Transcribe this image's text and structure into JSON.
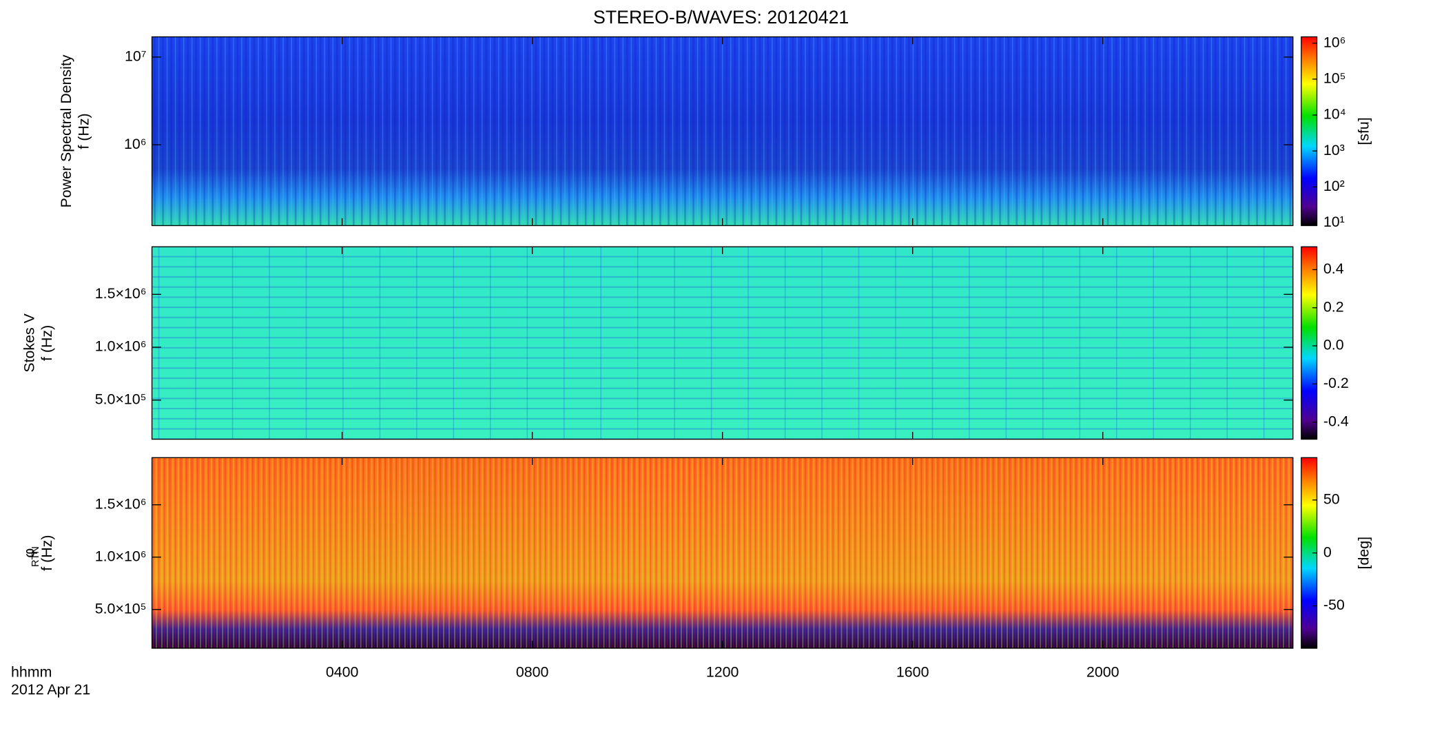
{
  "chart_data": {
    "type": "spectrogram",
    "title": "STEREO-B/WAVES: 20120421",
    "xlabel": "hhmm",
    "date": "2012 Apr 21",
    "xlim": [
      0,
      24
    ],
    "xticks": [
      {
        "value": 4,
        "label": "0400"
      },
      {
        "value": 8,
        "label": "0800"
      },
      {
        "value": 12,
        "label": "1200"
      },
      {
        "value": 16,
        "label": "1600"
      },
      {
        "value": 20,
        "label": "2000"
      }
    ],
    "panels": [
      {
        "ylabel": [
          "Power Spectral Density",
          "f (Hz)"
        ],
        "log": true,
        "ylim": [
          120000,
          17000000
        ],
        "yticks": [
          {
            "value": 1000000,
            "label": "10⁶"
          },
          {
            "value": 10000000,
            "label": "10⁷"
          }
        ],
        "colorbar": {
          "label": "[sfu]",
          "log": true,
          "lim": [
            8.4,
            1500000
          ],
          "ticks": [
            {
              "value": 10,
              "label": "10¹"
            },
            {
              "value": 100,
              "label": "10²"
            },
            {
              "value": 1000,
              "label": "10³"
            },
            {
              "value": 10000,
              "label": "10⁴"
            },
            {
              "value": 100000,
              "label": "10⁵"
            },
            {
              "value": 1000000,
              "label": "10⁶"
            }
          ]
        }
      },
      {
        "ylabel": [
          "Stokes V",
          "f (Hz)"
        ],
        "log": false,
        "ylim": [
          130000,
          1950000
        ],
        "yticks": [
          {
            "value": 500000,
            "label": "5.0×10⁵"
          },
          {
            "value": 1000000,
            "label": "1.0×10⁶"
          },
          {
            "value": 1500000,
            "label": "1.5×10⁶"
          }
        ],
        "colorbar": {
          "label": null,
          "log": false,
          "lim": [
            -0.49,
            0.52
          ],
          "ticks": [
            -0.4,
            -0.2,
            {
              "value": 0,
              "label": "0.0"
            },
            0.2,
            0.4
          ]
        }
      },
      {
        "ylabel": [
          "φ",
          "f (Hz)"
        ],
        "ylabel_sub": "RTN",
        "log": false,
        "ylim": [
          130000,
          1950000
        ],
        "yticks": [
          {
            "value": 500000,
            "label": "5.0×10⁵"
          },
          {
            "value": 1000000,
            "label": "1.0×10⁶"
          },
          {
            "value": 1500000,
            "label": "1.5×10⁶"
          }
        ],
        "colorbar": {
          "label": "[deg]",
          "log": false,
          "lim": [
            -90,
            90
          ],
          "ticks": [
            -50,
            0,
            50
          ]
        }
      }
    ]
  }
}
